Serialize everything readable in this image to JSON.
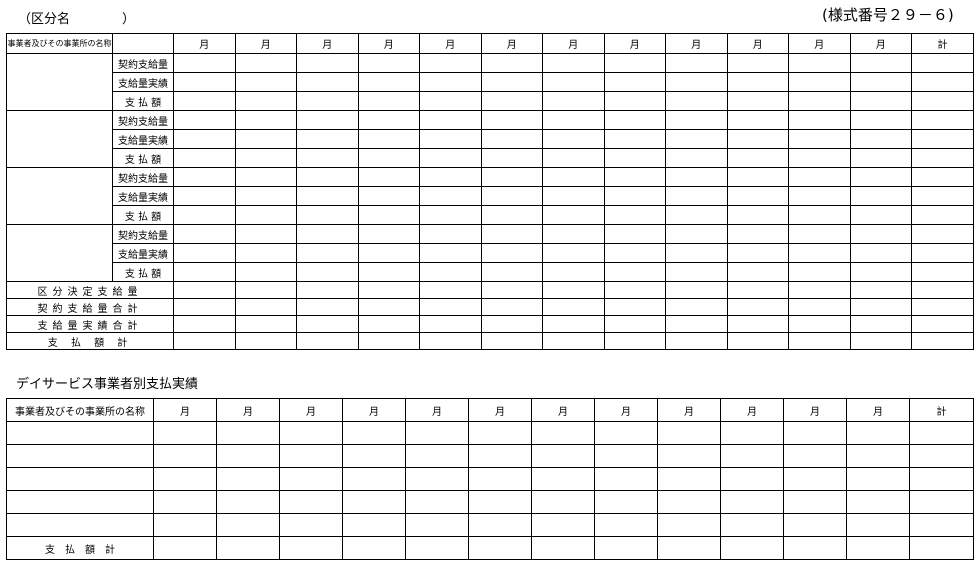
{
  "header": {
    "category_label": "（区分名　　　　）",
    "form_number": "(様式番号２９－６)"
  },
  "table1": {
    "name_header": "事業者及びその事業所の名称",
    "month": "月",
    "total": "計",
    "sub_rows": [
      "契約支給量",
      "支給量実績",
      "支 払 額"
    ],
    "groups": 4,
    "summary_rows": [
      "区分決定支給量",
      "契約支給量合計",
      "支給量実績合計",
      "支 払 額 計"
    ]
  },
  "section2_title": "デイサービス事業者別支払実績",
  "table2": {
    "name_header": "事業者及びその事業所の名称",
    "month": "月",
    "total": "計",
    "blank_rows": 5,
    "total_row": "支　払　額　計"
  }
}
